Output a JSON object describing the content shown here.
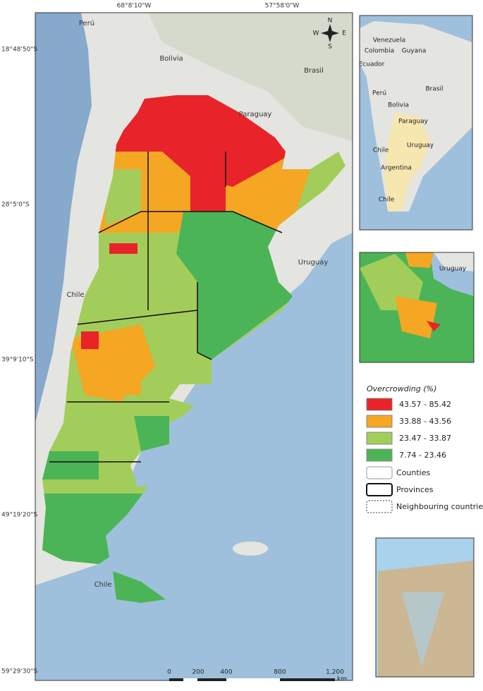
{
  "map": {
    "longitude_labels": [
      "68°8'10\"W",
      "57°58'0\"W"
    ],
    "latitude_labels": [
      "18°48'50\"S",
      "28°5'0\"S",
      "39°9'10\"S",
      "49°19'20\"S",
      "59°29'30\"S"
    ],
    "place_labels": [
      "Perú",
      "Bolivia",
      "Brasil",
      "Paraguay",
      "Chile",
      "Uruguay",
      "Chile"
    ],
    "compass": [
      "N",
      "S",
      "E",
      "W"
    ],
    "scale_bar": {
      "ticks": [
        "0",
        "200",
        "400",
        "800",
        "1,200"
      ],
      "unit": "km"
    }
  },
  "locator_inset": {
    "labels": [
      "Venezuela",
      "Colombia",
      "Guyana",
      "Ecuador",
      "Perú",
      "Brasil",
      "Bolivia",
      "Paraguay",
      "Chile",
      "Uruguay",
      "Argentina",
      "Chile"
    ]
  },
  "zoom_inset": {
    "labels": [
      "Uruguay"
    ]
  },
  "legend": {
    "title": "Overcrowding (%)",
    "classes": [
      {
        "label": "43.57 - 85.42",
        "color": "#e8232a"
      },
      {
        "label": "33.88 - 43.56",
        "color": "#f5a623"
      },
      {
        "label": "23.47 - 33.87",
        "color": "#a3cd5a"
      },
      {
        "label": "7.74 - 23.46",
        "color": "#4bb456"
      }
    ],
    "layers": [
      "Counties",
      "Provinces",
      "Neighbouring countries"
    ]
  }
}
